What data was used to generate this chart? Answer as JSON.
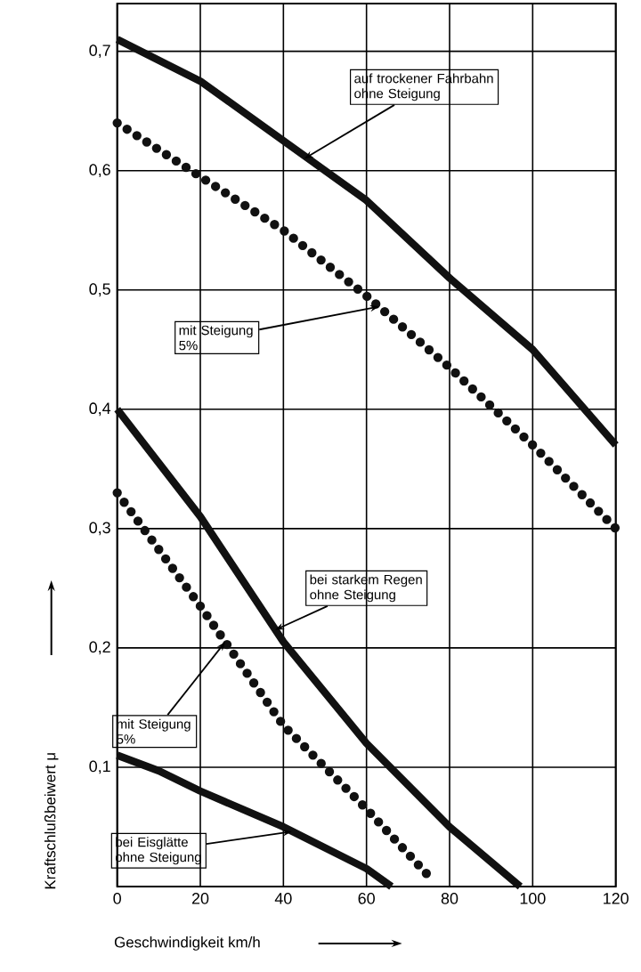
{
  "chart_data": {
    "type": "line",
    "xlabel": "Geschwindigkeit km/h",
    "ylabel": "Kraftschlußbeiwert μ",
    "xlim": [
      0,
      120
    ],
    "ylim": [
      0,
      0.74
    ],
    "xticks": [
      0,
      20,
      40,
      60,
      80,
      100,
      120
    ],
    "yticks": [
      {
        "value": 0.1,
        "label": "0,1"
      },
      {
        "value": 0.2,
        "label": "0,2"
      },
      {
        "value": 0.3,
        "label": "0,3"
      },
      {
        "value": 0.4,
        "label": "0,4"
      },
      {
        "value": 0.5,
        "label": "0,5"
      },
      {
        "value": 0.6,
        "label": "0,6"
      },
      {
        "value": 0.7,
        "label": "0,7"
      }
    ],
    "grid": true,
    "series": [
      {
        "color": "#111111",
        "line_style": "solid",
        "x": [
          0,
          20,
          40,
          60,
          80,
          100,
          120
        ],
        "values": [
          0.71,
          0.675,
          0.625,
          0.575,
          0.51,
          0.45,
          0.37
        ]
      },
      {
        "color": "#111111",
        "line_style": "dotted",
        "x": [
          0,
          20,
          40,
          60,
          80,
          100,
          120
        ],
        "values": [
          0.64,
          0.595,
          0.55,
          0.495,
          0.435,
          0.37,
          0.3
        ]
      },
      {
        "color": "#111111",
        "line_style": "solid",
        "x": [
          0,
          20,
          40,
          60,
          80,
          97
        ],
        "values": [
          0.4,
          0.31,
          0.205,
          0.12,
          0.05,
          0
        ]
      },
      {
        "color": "#111111",
        "line_style": "dotted",
        "x": [
          0,
          20,
          40,
          60,
          76
        ],
        "values": [
          0.33,
          0.235,
          0.135,
          0.065,
          0.005
        ]
      },
      {
        "color": "#111111",
        "line_style": "solid",
        "x": [
          0,
          10,
          20,
          40,
          60,
          66
        ],
        "values": [
          0.11,
          0.097,
          0.08,
          0.05,
          0.015,
          0
        ]
      }
    ],
    "annotations": [
      {
        "text": "auf trockener Fahrbahn\nohne Steigung",
        "x": 45,
        "y": 0.61
      },
      {
        "text": "mit Steigung\n5%",
        "x": 63,
        "y": 0.486
      },
      {
        "text": "bei starkem Regen\nohne Steigung",
        "x": 38,
        "y": 0.215
      },
      {
        "text": "mit Steigung\n5%",
        "x": 26,
        "y": 0.205
      },
      {
        "text": "bei Eisglätte\nohne Steigung",
        "x": 42,
        "y": 0.046
      }
    ]
  }
}
